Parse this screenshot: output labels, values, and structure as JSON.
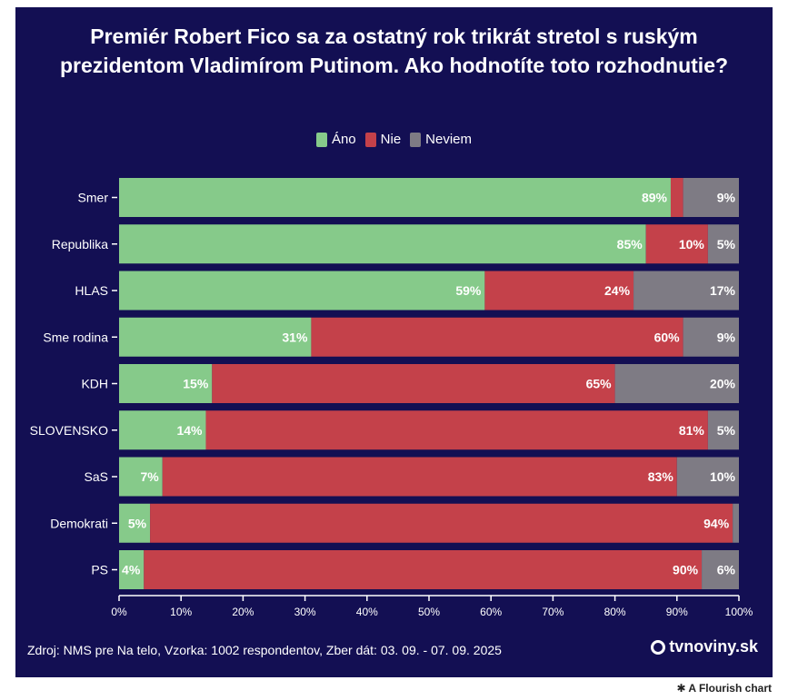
{
  "title": "Premiér Robert Fico sa za ostatný rok trikrát stretol s ruským prezidentom Vladimírom Putinom. Ako hodnotíte toto rozhodnutie?",
  "source": "Zdroj: NMS pre Na telo, Vzorka: 1002 respondentov, Zber dát: 03. 09. - 07. 09. 2025",
  "brand": "tvnoviny.sk",
  "flourish_credit": "A Flourish chart",
  "colors": {
    "background": "#130f53",
    "ano": "#86ca8a",
    "nie": "#c4414a",
    "neviem": "#7e7b84"
  },
  "chart_data": {
    "type": "bar",
    "orientation": "horizontal",
    "stacked": true,
    "title": "Premiér Robert Fico sa za ostatný rok trikrát stretol s ruským prezidentom Vladimírom Putinom. Ako hodnotíte toto rozhodnutie?",
    "categories": [
      "Smer",
      "Republika",
      "HLAS",
      "Sme rodina",
      "KDH",
      "SLOVENSKO",
      "SaS",
      "Demokrati",
      "PS"
    ],
    "series": [
      {
        "name": "Áno",
        "color": "#86ca8a",
        "values": [
          89,
          85,
          59,
          31,
          15,
          14,
          7,
          5,
          4
        ]
      },
      {
        "name": "Nie",
        "color": "#c4414a",
        "values": [
          2,
          10,
          24,
          60,
          65,
          81,
          83,
          94,
          90
        ]
      },
      {
        "name": "Neviem",
        "color": "#7e7b84",
        "values": [
          9,
          5,
          17,
          9,
          20,
          5,
          10,
          1,
          6
        ]
      }
    ],
    "labels_shown": [
      [
        "89%",
        "",
        "9%"
      ],
      [
        "85%",
        "10%",
        "5%"
      ],
      [
        "59%",
        "24%",
        "17%"
      ],
      [
        "31%",
        "60%",
        "9%"
      ],
      [
        "15%",
        "65%",
        "20%"
      ],
      [
        "14%",
        "81%",
        "5%"
      ],
      [
        "7%",
        "83%",
        "10%"
      ],
      [
        "5%",
        "94%",
        ""
      ],
      [
        "4%",
        "90%",
        "6%"
      ]
    ],
    "x_ticks": [
      "0%",
      "10%",
      "20%",
      "30%",
      "40%",
      "50%",
      "60%",
      "70%",
      "80%",
      "90%",
      "100%"
    ],
    "xlim": [
      0,
      100
    ],
    "legend": "top-center",
    "grid": false
  }
}
